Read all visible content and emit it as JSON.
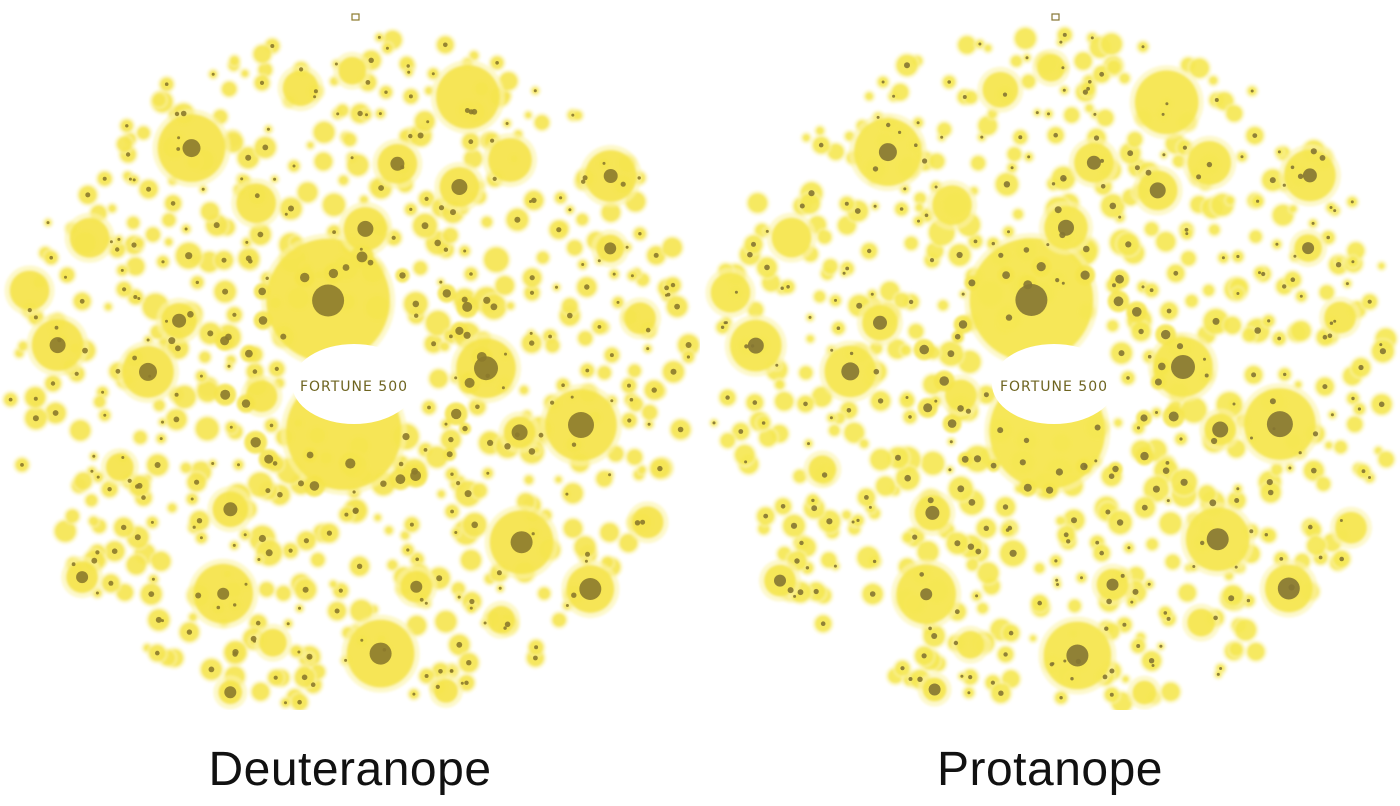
{
  "panels": [
    {
      "id": "deuteranope",
      "caption": "Deuteranope",
      "center_label": "FORTUNE 500",
      "seed": 7,
      "colors": {
        "bubble": "#f5e44c",
        "bubble_light": "#fbf3a6",
        "core": "#8c7a2c",
        "center_text": "#6e6420"
      }
    },
    {
      "id": "protanope",
      "caption": "Protanope",
      "center_label": "FORTUNE 500",
      "seed": 11,
      "colors": {
        "bubble": "#f5e64e",
        "bubble_light": "#fbf4aa",
        "core": "#857533",
        "center_text": "#6e6420"
      }
    }
  ]
}
